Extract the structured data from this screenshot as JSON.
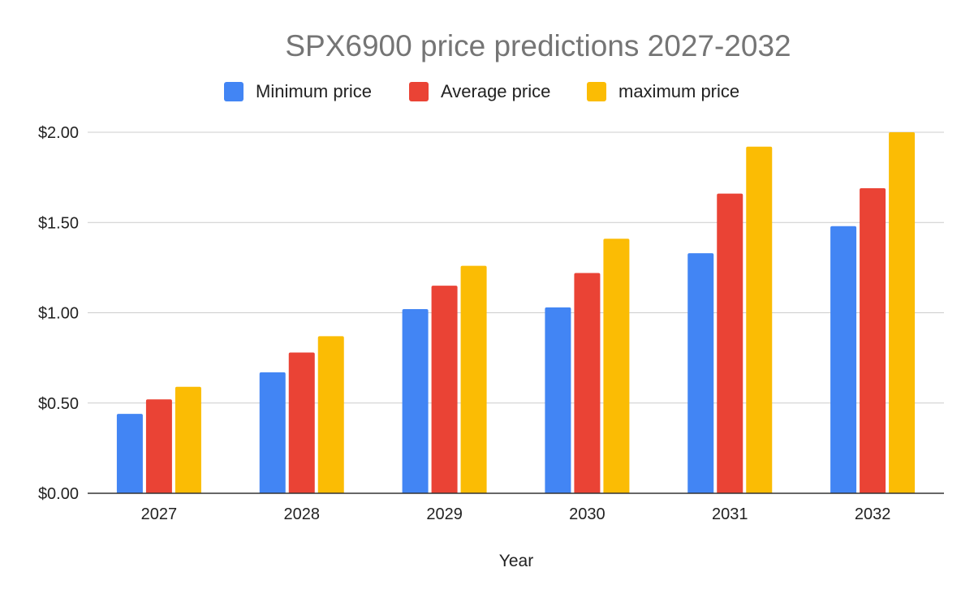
{
  "chart_data": {
    "type": "bar",
    "title": "SPX6900 price predictions 2027-2032",
    "xlabel": "Year",
    "ylabel": "",
    "categories": [
      "2027",
      "2028",
      "2029",
      "2030",
      "2031",
      "2032"
    ],
    "series": [
      {
        "name": "Minimum price",
        "color": "#4285f4",
        "values": [
          0.44,
          0.67,
          1.02,
          1.03,
          1.33,
          1.48
        ]
      },
      {
        "name": "Average price",
        "color": "#ea4335",
        "values": [
          0.52,
          0.78,
          1.15,
          1.22,
          1.66,
          1.69
        ]
      },
      {
        "name": "maximum price",
        "color": "#fbbc04",
        "values": [
          0.59,
          0.87,
          1.26,
          1.41,
          1.92,
          2.0
        ]
      }
    ],
    "yticks": [
      "$0.00",
      "$0.50",
      "$1.00",
      "$1.50",
      "$2.00"
    ],
    "ylim": [
      0,
      2
    ],
    "grid": true,
    "legend": "top"
  }
}
